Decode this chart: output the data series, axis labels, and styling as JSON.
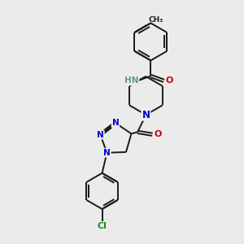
{
  "background_color": "#ebebeb",
  "atom_colors": {
    "C": "#1a1a1a",
    "N": "#0000cc",
    "O": "#cc0000",
    "Cl": "#1a8c1a",
    "H": "#5a9a9a"
  },
  "bond_color": "#1a1a1a",
  "bond_width": 1.4,
  "dbo": 0.055,
  "figsize": [
    3.0,
    3.0
  ],
  "dpi": 100
}
